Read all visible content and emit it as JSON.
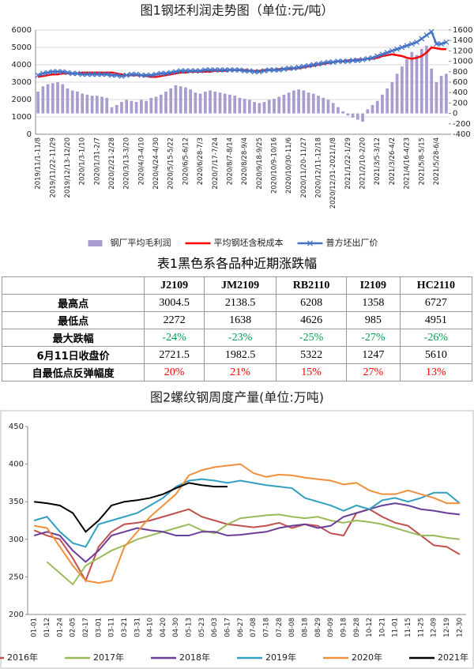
{
  "chart_data": [
    {
      "type": "combo",
      "title": "图1钢坯利润走势图（单位:元/吨）",
      "categories": [
        "2019/11/1-11/8",
        null,
        null,
        "2019/11/22-11/29",
        null,
        null,
        "2019/12/13-12/20",
        null,
        null,
        "2020/1/3-1/10",
        null,
        null,
        "2020/1/31-2/7",
        null,
        null,
        "2020/2/21-2/28",
        null,
        null,
        "2020/3/13-3/20",
        null,
        null,
        "2020/4/3-4/10",
        null,
        null,
        "2020/4/24-4/30",
        null,
        null,
        "2020/5/15-5/22",
        null,
        null,
        "2020/6/5-6/12",
        null,
        null,
        "2020/6/28-7/3",
        null,
        null,
        "2020/7/17-7/24",
        null,
        null,
        "2020/8/7-8/14",
        null,
        null,
        "2020/8/28-9/4",
        null,
        null,
        "2020/9/18-9/25",
        null,
        null,
        "2020/10/9-10/16",
        null,
        null,
        "2020/10/30-11/6",
        null,
        null,
        "2020/11/20-11/27",
        null,
        null,
        "2020/12/11-12/18",
        null,
        null,
        "2020/12/31-2021/1/8",
        null,
        null,
        "2021/1/22-1/29",
        null,
        null,
        "2021/2/10-2/20",
        null,
        null,
        "2021/3/5-3/12",
        null,
        null,
        "2021/3/26-4/2",
        null,
        null,
        "2021/4/16-4/23",
        null,
        null,
        "2021/5/8-5/15",
        null,
        null,
        "2021/5/28-6/4",
        null,
        null
      ],
      "series": [
        {
          "name": "钢厂平均毛利润",
          "kind": "bar",
          "axis": "y2",
          "color": "#a99ccf",
          "values": [
            420,
            520,
            560,
            580,
            600,
            560,
            480,
            440,
            420,
            380,
            360,
            340,
            340,
            320,
            300,
            120,
            160,
            220,
            260,
            240,
            220,
            260,
            240,
            300,
            320,
            360,
            420,
            480,
            540,
            520,
            500,
            460,
            400,
            380,
            420,
            440,
            420,
            400,
            380,
            360,
            340,
            300,
            280,
            260,
            220,
            200,
            220,
            260,
            280,
            320,
            360,
            400,
            440,
            460,
            440,
            400,
            380,
            340,
            300,
            260,
            200,
            120,
            40,
            -40,
            -80,
            -120,
            -160,
            80,
            160,
            240,
            360,
            480,
            600,
            760,
            900,
            1040,
            1180,
            1120,
            1240,
            1300,
            860,
            600,
            720,
            760
          ]
        },
        {
          "name": "平均钢坯含税成本",
          "kind": "line",
          "color": "#ff0000",
          "values": [
            3300,
            3350,
            3400,
            3450,
            3450,
            3500,
            3500,
            3500,
            3500,
            3550,
            3550,
            3550,
            3550,
            3550,
            3550,
            3550,
            3500,
            3450,
            3400,
            3400,
            3400,
            3400,
            3350,
            3300,
            3300,
            3350,
            3400,
            3450,
            3500,
            3550,
            3550,
            3600,
            3600,
            3600,
            3600,
            3600,
            3650,
            3650,
            3650,
            3700,
            3700,
            3700,
            3700,
            3650,
            3650,
            3650,
            3700,
            3700,
            3700,
            3750,
            3750,
            3750,
            3800,
            3800,
            3850,
            3900,
            3950,
            4000,
            4050,
            4100,
            4150,
            4200,
            4200,
            4250,
            4250,
            4300,
            4300,
            4350,
            4350,
            4400,
            4500,
            4550,
            4600,
            4550,
            4500,
            4400,
            4350,
            4400,
            4500,
            4700,
            5000,
            4950,
            4900,
            4900
          ]
        },
        {
          "name": "普方坯出厂价",
          "kind": "line",
          "marker": "x",
          "color": "#4472c4",
          "values": [
            3400,
            3500,
            3550,
            3600,
            3600,
            3600,
            3550,
            3500,
            3500,
            3450,
            3450,
            3450,
            3450,
            3450,
            3450,
            3400,
            3400,
            3350,
            3400,
            3450,
            3450,
            3400,
            3400,
            3400,
            3450,
            3500,
            3500,
            3550,
            3600,
            3650,
            3650,
            3650,
            3650,
            3650,
            3700,
            3700,
            3700,
            3700,
            3700,
            3700,
            3700,
            3700,
            3650,
            3650,
            3600,
            3600,
            3650,
            3700,
            3700,
            3700,
            3750,
            3800,
            3800,
            3850,
            3900,
            3950,
            4000,
            4050,
            4100,
            4150,
            4150,
            4200,
            4200,
            4200,
            4250,
            4250,
            4300,
            4350,
            4400,
            4500,
            4600,
            4700,
            4800,
            4900,
            5000,
            5100,
            5200,
            5300,
            5500,
            5700,
            5900,
            5200,
            5200,
            5300
          ]
        }
      ],
      "ylim": [
        0,
        6000
      ],
      "yticks": [
        0,
        1000,
        2000,
        3000,
        4000,
        5000,
        6000
      ],
      "y2lim": [
        -400,
        1600
      ],
      "y2ticks": [
        -400,
        -200,
        0,
        200,
        400,
        600,
        800,
        1000,
        1200,
        1400,
        1600
      ],
      "grid": true,
      "legend": "bottom"
    },
    {
      "type": "line",
      "title": "图2螺纹钢周度产量(单位:万吨)",
      "categories": [
        "01-01",
        "01-12",
        "01-24",
        "02-05",
        "02-17",
        "03-01",
        "03-11",
        "03-21",
        "03-31",
        "04-10",
        "04-20",
        "04-30",
        "05-13",
        "05-23",
        "06-03",
        "06-17",
        "06-27",
        "07-08",
        "07-18",
        "07-28",
        "08-08",
        "08-18",
        "08-29",
        "09-09",
        "09-18",
        "09-28",
        "10-12",
        "10-21",
        "11-01",
        "11-15",
        "11-25",
        "12-09",
        "12-19",
        "12-30"
      ],
      "series": [
        {
          "name": "2016年",
          "color": "#c0504d",
          "values": [
            312,
            305,
            300,
            275,
            245,
            290,
            310,
            320,
            322,
            325,
            330,
            335,
            340,
            330,
            325,
            320,
            318,
            316,
            318,
            322,
            315,
            320,
            318,
            308,
            305,
            335,
            340,
            330,
            322,
            318,
            305,
            292,
            290,
            280
          ]
        },
        {
          "name": "2017年",
          "color": "#9bbb59",
          "values": [
            null,
            270,
            255,
            240,
            265,
            275,
            285,
            292,
            300,
            305,
            310,
            315,
            320,
            312,
            308,
            320,
            328,
            330,
            332,
            333,
            330,
            328,
            330,
            325,
            322,
            325,
            323,
            320,
            315,
            310,
            305,
            305,
            302,
            300
          ]
        },
        {
          "name": "2018年",
          "color": "#6a3d9a",
          "values": [
            305,
            310,
            305,
            285,
            270,
            285,
            305,
            310,
            315,
            312,
            310,
            305,
            305,
            310,
            310,
            305,
            306,
            308,
            310,
            315,
            318,
            320,
            315,
            318,
            330,
            335,
            340,
            345,
            348,
            345,
            340,
            338,
            335,
            333
          ]
        },
        {
          "name": "2019年",
          "color": "#31a0c0",
          "values": [
            325,
            330,
            310,
            295,
            290,
            320,
            325,
            330,
            335,
            345,
            355,
            370,
            378,
            380,
            378,
            375,
            378,
            375,
            372,
            370,
            368,
            355,
            350,
            345,
            338,
            345,
            340,
            352,
            355,
            350,
            355,
            362,
            362,
            348
          ]
        },
        {
          "name": "2020年",
          "color": "#f0903a",
          "values": [
            318,
            315,
            290,
            265,
            245,
            242,
            245,
            290,
            310,
            330,
            345,
            360,
            385,
            392,
            396,
            398,
            400,
            388,
            383,
            386,
            385,
            382,
            380,
            378,
            373,
            375,
            365,
            360,
            360,
            365,
            360,
            355,
            348,
            348
          ]
        },
        {
          "name": "2021年",
          "color": "#000000",
          "values": [
            350,
            348,
            345,
            335,
            310,
            325,
            345,
            350,
            352,
            355,
            360,
            368,
            375,
            372,
            370,
            370,
            null,
            null,
            null,
            null,
            null,
            null,
            null,
            null,
            null,
            null,
            null,
            null,
            null,
            null,
            null,
            null,
            null,
            null
          ]
        }
      ],
      "ylim": [
        200,
        450
      ],
      "yticks": [
        200,
        250,
        300,
        350,
        400,
        450
      ],
      "grid": false,
      "legend": "bottom"
    }
  ],
  "table": {
    "title": "表1黑色系各品种近期涨跌幅",
    "columns": [
      "J2109",
      "JM2109",
      "RB2110",
      "I2109",
      "HC2110"
    ],
    "rows": [
      {
        "label": "最高点",
        "cells": [
          "3004.5",
          "2138.5",
          "6208",
          "1358",
          "6727"
        ]
      },
      {
        "label": "最低点",
        "cells": [
          "2272",
          "1638",
          "4626",
          "985",
          "4951"
        ]
      },
      {
        "label": "最大跌幅",
        "color": "#00a050",
        "cells": [
          "-24%",
          "-23%",
          "-25%",
          "-27%",
          "-26%"
        ]
      },
      {
        "label": "6月11日收盘价",
        "cells": [
          "2721.5",
          "1982.5",
          "5322",
          "1247",
          "5610"
        ]
      },
      {
        "label": "自最低点反弹幅度",
        "color": "#ff0000",
        "cells": [
          "20%",
          "21%",
          "15%",
          "27%",
          "13%"
        ]
      }
    ]
  }
}
